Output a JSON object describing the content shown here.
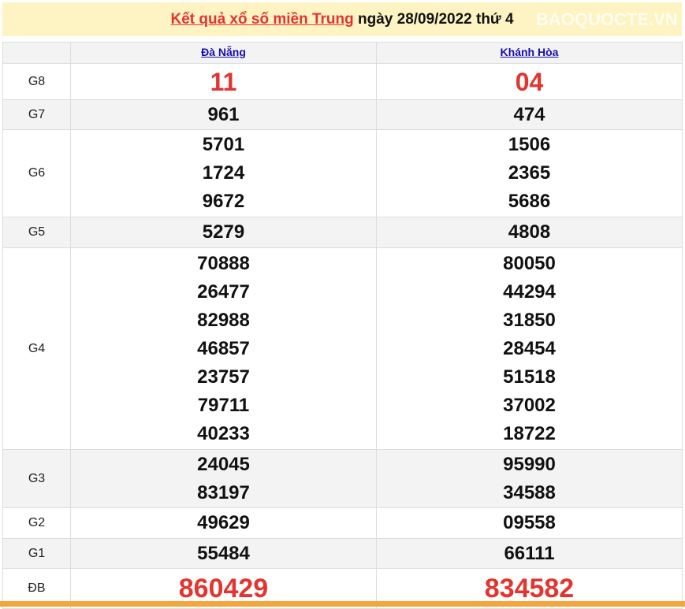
{
  "header": {
    "link": "Kết quả xổ số miền Trung",
    "rest": " ngày 28/09/2022 thứ 4"
  },
  "columns": [
    "Đà Nẵng",
    "Khánh Hòa"
  ],
  "rows": [
    {
      "label": "G8",
      "a": [
        "11"
      ],
      "b": [
        "04"
      ]
    },
    {
      "label": "G7",
      "a": [
        "961"
      ],
      "b": [
        "474"
      ]
    },
    {
      "label": "G6",
      "a": [
        "5701",
        "1724",
        "9672"
      ],
      "b": [
        "1506",
        "2365",
        "5686"
      ]
    },
    {
      "label": "G5",
      "a": [
        "5279"
      ],
      "b": [
        "4808"
      ]
    },
    {
      "label": "G4",
      "a": [
        "70888",
        "26477",
        "82988",
        "46857",
        "23757",
        "79711",
        "40233"
      ],
      "b": [
        "80050",
        "44294",
        "31850",
        "28454",
        "51518",
        "37002",
        "18722"
      ]
    },
    {
      "label": "G3",
      "a": [
        "24045",
        "83197"
      ],
      "b": [
        "95990",
        "34588"
      ]
    },
    {
      "label": "G2",
      "a": [
        "49629"
      ],
      "b": [
        "09558"
      ]
    },
    {
      "label": "G1",
      "a": [
        "55484"
      ],
      "b": [
        "66111"
      ]
    },
    {
      "label": "ĐB",
      "a": [
        "860429"
      ],
      "b": [
        "834582"
      ]
    }
  ],
  "watermark": "BAOQUOCTE.VN",
  "colors": {
    "red": "#e3342f",
    "header_bg": "#fdf3c3",
    "bar": "#f4a53c"
  }
}
